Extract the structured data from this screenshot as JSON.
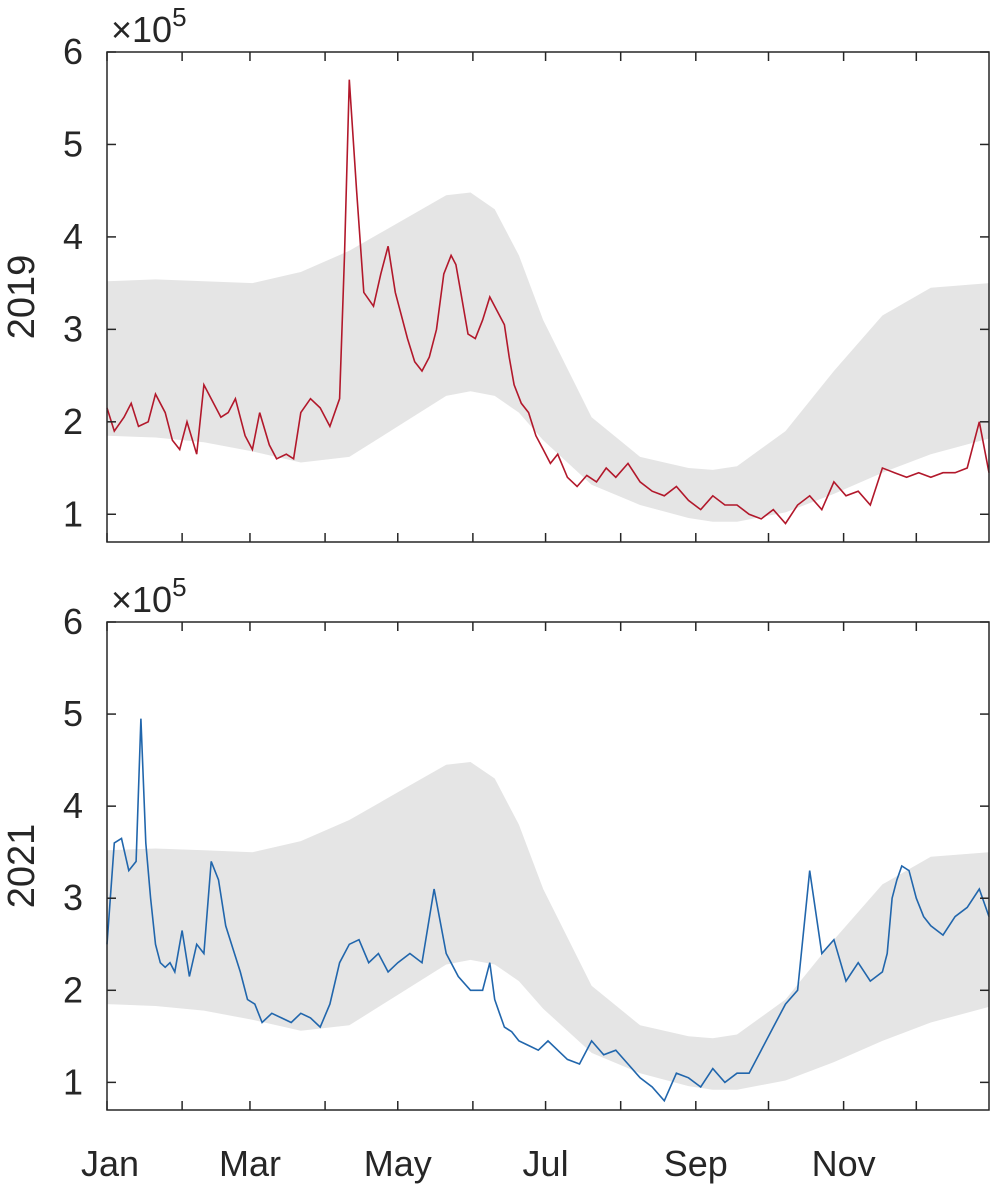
{
  "chart_data": [
    {
      "type": "line",
      "ylabel": "2019",
      "exponent_label": "×10",
      "exponent_power": "5",
      "ylim": [
        0.7,
        6.0
      ],
      "y_ticks": [
        1,
        2,
        3,
        4,
        5,
        6
      ],
      "y_tick_labels": [
        "1",
        "2",
        "3",
        "4",
        "5",
        "6"
      ],
      "x_tick_labels": [],
      "line_color": "#b2182b",
      "band_color": "#e5e5e5",
      "band": {
        "x": [
          0,
          20,
          40,
          60,
          80,
          100,
          120,
          140,
          150,
          160,
          170,
          180,
          200,
          220,
          240,
          250,
          260,
          280,
          300,
          320,
          340,
          364
        ],
        "lower": [
          1.85,
          1.83,
          1.78,
          1.68,
          1.56,
          1.62,
          1.95,
          2.28,
          2.33,
          2.28,
          2.1,
          1.8,
          1.32,
          1.1,
          0.96,
          0.92,
          0.92,
          1.02,
          1.22,
          1.45,
          1.65,
          1.82
        ],
        "upper": [
          3.52,
          3.54,
          3.52,
          3.5,
          3.62,
          3.85,
          4.15,
          4.45,
          4.48,
          4.3,
          3.8,
          3.1,
          2.05,
          1.62,
          1.5,
          1.48,
          1.52,
          1.9,
          2.55,
          3.15,
          3.45,
          3.5
        ]
      },
      "series": [
        {
          "x": [
            0,
            3,
            7,
            10,
            13,
            17,
            20,
            24,
            27,
            30,
            33,
            37,
            40,
            43,
            47,
            50,
            53,
            57,
            60,
            63,
            67,
            70,
            74,
            77,
            80,
            84,
            88,
            92,
            96,
            98,
            100,
            103,
            106,
            110,
            113,
            116,
            119,
            121,
            124,
            127,
            130,
            133,
            136,
            139,
            142,
            144,
            146,
            149,
            152,
            155,
            158,
            161,
            164,
            166,
            168,
            171,
            174,
            177,
            180,
            183,
            186,
            190,
            194,
            198,
            202,
            206,
            210,
            215,
            220,
            225,
            230,
            235,
            240,
            245,
            250,
            255,
            260,
            265,
            270,
            275,
            280,
            285,
            290,
            295,
            300,
            305,
            310,
            315,
            320,
            325,
            330,
            335,
            340,
            345,
            350,
            355,
            360,
            364
          ],
          "values": [
            2.15,
            1.9,
            2.05,
            2.2,
            1.95,
            2.0,
            2.3,
            2.1,
            1.8,
            1.7,
            2.0,
            1.65,
            2.4,
            2.25,
            2.05,
            2.1,
            2.25,
            1.85,
            1.7,
            2.1,
            1.75,
            1.6,
            1.65,
            1.6,
            2.1,
            2.25,
            2.15,
            1.95,
            2.25,
            3.8,
            5.7,
            4.5,
            3.4,
            3.25,
            3.6,
            3.9,
            3.4,
            3.2,
            2.9,
            2.65,
            2.55,
            2.7,
            3.0,
            3.6,
            3.8,
            3.7,
            3.4,
            2.95,
            2.9,
            3.1,
            3.35,
            3.2,
            3.05,
            2.7,
            2.4,
            2.2,
            2.1,
            1.85,
            1.7,
            1.55,
            1.65,
            1.4,
            1.3,
            1.42,
            1.35,
            1.5,
            1.4,
            1.55,
            1.35,
            1.25,
            1.2,
            1.3,
            1.15,
            1.05,
            1.2,
            1.1,
            1.1,
            1.0,
            0.95,
            1.05,
            0.9,
            1.1,
            1.2,
            1.05,
            1.35,
            1.2,
            1.25,
            1.1,
            1.5,
            1.45,
            1.4,
            1.45,
            1.4,
            1.45,
            1.45,
            1.5,
            2.0,
            1.45
          ]
        }
      ]
    },
    {
      "type": "line",
      "ylabel": "2021",
      "exponent_label": "×10",
      "exponent_power": "5",
      "ylim": [
        0.7,
        6.0
      ],
      "y_ticks": [
        1,
        2,
        3,
        4,
        5,
        6
      ],
      "y_tick_labels": [
        "1",
        "2",
        "3",
        "4",
        "5",
        "6"
      ],
      "x_tick_labels": [
        "Jan",
        "Mar",
        "May",
        "Jul",
        "Sep",
        "Nov"
      ],
      "line_color": "#2166ac",
      "band_color": "#e5e5e5",
      "band": {
        "x": [
          0,
          20,
          40,
          60,
          80,
          100,
          120,
          140,
          150,
          160,
          170,
          180,
          200,
          220,
          240,
          250,
          260,
          280,
          300,
          320,
          340,
          364
        ],
        "lower": [
          1.85,
          1.83,
          1.78,
          1.68,
          1.56,
          1.62,
          1.95,
          2.28,
          2.33,
          2.28,
          2.1,
          1.8,
          1.32,
          1.1,
          0.96,
          0.92,
          0.92,
          1.02,
          1.22,
          1.45,
          1.65,
          1.82
        ],
        "upper": [
          3.52,
          3.54,
          3.52,
          3.5,
          3.62,
          3.85,
          4.15,
          4.45,
          4.48,
          4.3,
          3.8,
          3.1,
          2.05,
          1.62,
          1.5,
          1.48,
          1.52,
          1.9,
          2.55,
          3.15,
          3.45,
          3.5
        ]
      },
      "series": [
        {
          "x": [
            0,
            3,
            6,
            9,
            12,
            14,
            16,
            18,
            20,
            22,
            24,
            26,
            28,
            31,
            34,
            37,
            40,
            43,
            46,
            49,
            52,
            55,
            58,
            61,
            64,
            68,
            72,
            76,
            80,
            84,
            88,
            92,
            96,
            100,
            104,
            108,
            112,
            116,
            120,
            125,
            130,
            135,
            140,
            145,
            150,
            155,
            158,
            160,
            162,
            164,
            167,
            170,
            174,
            178,
            182,
            186,
            190,
            195,
            200,
            205,
            210,
            215,
            220,
            225,
            230,
            235,
            240,
            245,
            250,
            255,
            260,
            265,
            270,
            275,
            280,
            285,
            290,
            295,
            300,
            305,
            310,
            315,
            320,
            322,
            324,
            326,
            328,
            331,
            334,
            337,
            340,
            345,
            350,
            355,
            360,
            364
          ],
          "values": [
            2.5,
            3.6,
            3.65,
            3.3,
            3.4,
            4.95,
            3.6,
            3.0,
            2.5,
            2.3,
            2.25,
            2.3,
            2.2,
            2.65,
            2.15,
            2.5,
            2.4,
            3.4,
            3.2,
            2.7,
            2.45,
            2.2,
            1.9,
            1.85,
            1.65,
            1.75,
            1.7,
            1.65,
            1.75,
            1.7,
            1.6,
            1.85,
            2.3,
            2.5,
            2.55,
            2.3,
            2.4,
            2.2,
            2.3,
            2.4,
            2.3,
            3.1,
            2.4,
            2.15,
            2.0,
            2.0,
            2.3,
            1.9,
            1.75,
            1.6,
            1.55,
            1.45,
            1.4,
            1.35,
            1.45,
            1.35,
            1.25,
            1.2,
            1.45,
            1.3,
            1.35,
            1.2,
            1.05,
            0.95,
            0.8,
            1.1,
            1.05,
            0.95,
            1.15,
            1.0,
            1.1,
            1.1,
            1.35,
            1.6,
            1.85,
            2.0,
            3.3,
            2.4,
            2.55,
            2.1,
            2.3,
            2.1,
            2.2,
            2.4,
            3.0,
            3.2,
            3.35,
            3.3,
            3.0,
            2.8,
            2.7,
            2.6,
            2.8,
            2.9,
            3.1,
            2.8
          ]
        }
      ]
    }
  ]
}
